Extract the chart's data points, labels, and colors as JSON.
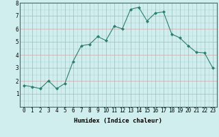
{
  "xlabel": "Humidex (Indice chaleur)",
  "x_values": [
    0,
    1,
    2,
    3,
    4,
    5,
    6,
    7,
    8,
    9,
    10,
    11,
    12,
    13,
    14,
    15,
    16,
    17,
    18,
    19,
    20,
    21,
    22,
    23
  ],
  "y_values": [
    1.65,
    1.55,
    1.4,
    2.0,
    1.4,
    1.8,
    3.5,
    4.7,
    4.8,
    5.4,
    5.1,
    6.2,
    6.0,
    7.5,
    7.65,
    6.6,
    7.2,
    7.3,
    5.6,
    5.3,
    4.7,
    4.2,
    4.15,
    3.0
  ],
  "line_color": "#2d7d6d",
  "marker": "D",
  "marker_size": 2,
  "bg_color": "#d0eeee",
  "grid_color_major": "#c8a8a8",
  "grid_color_minor": "#b0d8d8",
  "ylim": [
    0,
    8
  ],
  "xlim": [
    -0.5,
    23.5
  ],
  "yticks": [
    1,
    2,
    3,
    4,
    5,
    6,
    7,
    8
  ],
  "xticks": [
    0,
    1,
    2,
    3,
    4,
    5,
    6,
    7,
    8,
    9,
    10,
    11,
    12,
    13,
    14,
    15,
    16,
    17,
    18,
    19,
    20,
    21,
    22,
    23
  ],
  "xlabel_fontsize": 6.5,
  "tick_fontsize": 5.5
}
